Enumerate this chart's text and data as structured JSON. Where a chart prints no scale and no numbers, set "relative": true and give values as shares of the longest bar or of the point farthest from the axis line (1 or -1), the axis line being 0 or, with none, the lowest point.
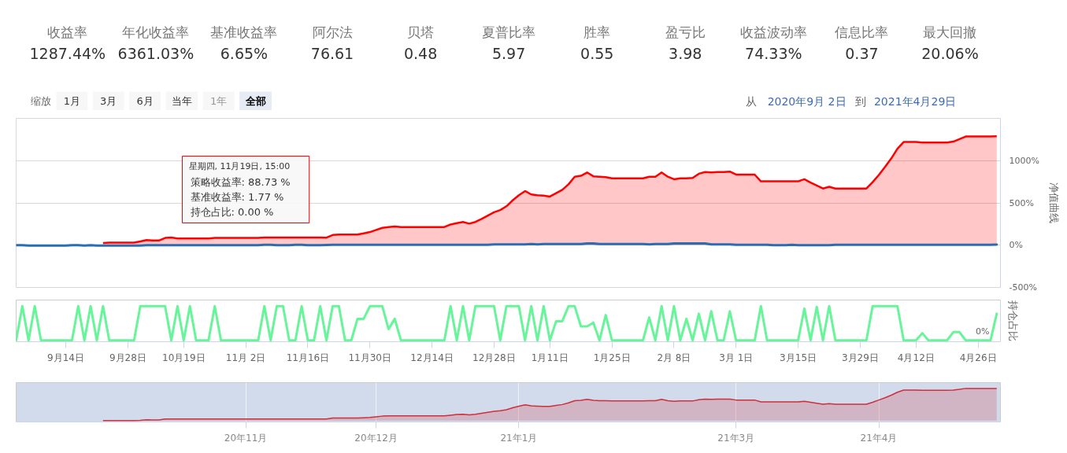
{
  "chart_data": [
    {
      "type": "other",
      "categories": [
        "收益率",
        "年化收益率",
        "基准收益率",
        "阿尔法",
        "贝塔",
        "夏普比率",
        "胜率",
        "盈亏比",
        "收益波动率",
        "信息比率",
        "最大回撤"
      ],
      "value_labels": [
        "1287.44%",
        "6361.03%",
        "6.65%",
        "76.61",
        "0.48",
        "5.97",
        "0.55",
        "3.98",
        "74.33%",
        "0.37",
        "20.06%"
      ],
      "annotations": [
        "缩放",
        "1月",
        "3月",
        "6月",
        "当年",
        "1年",
        "全部",
        "从",
        "2020年9月 2日",
        "到",
        "2021年4月29日"
      ]
    },
    {
      "type": "area",
      "ylabel": "净值曲线",
      "ylim": [
        -500,
        1500
      ],
      "yticks": [
        {
          "value": -500,
          "label": "-500%"
        },
        {
          "value": 0,
          "label": "0%"
        },
        {
          "value": 500,
          "label": "500%"
        },
        {
          "value": 1000,
          "label": "1000%"
        }
      ],
      "grid": "y",
      "tick_labels": "y",
      "categories": [
        null,
        null,
        null,
        null,
        null,
        null,
        null,
        null,
        null,
        null,
        null,
        null,
        null,
        null,
        null,
        null,
        null,
        null,
        null,
        null,
        null,
        null,
        null,
        null,
        null,
        null,
        null,
        null,
        null,
        null,
        null,
        null,
        null,
        null,
        null,
        null,
        null,
        null,
        null,
        null,
        null,
        null,
        null,
        null,
        null,
        null,
        null,
        null,
        null,
        null,
        null,
        null,
        null,
        null,
        null,
        null,
        null,
        null,
        null,
        null,
        null,
        null,
        null,
        null,
        null,
        null,
        null,
        null,
        null,
        null,
        null,
        null,
        null,
        null,
        null,
        null,
        null,
        null,
        null,
        null,
        null,
        null,
        null,
        null,
        null,
        null,
        null,
        null,
        null,
        null,
        null,
        null,
        null,
        null,
        null,
        null,
        null,
        null,
        null,
        null,
        null,
        null,
        null,
        null,
        null,
        null,
        null,
        null,
        null,
        null,
        null,
        null,
        null,
        null,
        null,
        null,
        null,
        null,
        null,
        null,
        null,
        null,
        null,
        null,
        null,
        null,
        null,
        null,
        null,
        null,
        null,
        null,
        null,
        null,
        null,
        null,
        null,
        null,
        null,
        null,
        null,
        null,
        null,
        null,
        null,
        null,
        null,
        null,
        null,
        null,
        null,
        null,
        null,
        null,
        null,
        null,
        null,
        null,
        null
      ],
      "series": [
        {
          "color": "#ff0000",
          "values": [
            null,
            null,
            null,
            null,
            null,
            null,
            null,
            null,
            null,
            null,
            null,
            null,
            null,
            null,
            25,
            30,
            30,
            30,
            30,
            30,
            45,
            60,
            55,
            55,
            85,
            90,
            80,
            80,
            80,
            80,
            80,
            80,
            85,
            85,
            85,
            85,
            85,
            85,
            85,
            85,
            90,
            90,
            90,
            90,
            90,
            90,
            90,
            90,
            90,
            90,
            88.73,
            120,
            125,
            125,
            125,
            125,
            140,
            155,
            180,
            205,
            215,
            220,
            215,
            215,
            215,
            215,
            215,
            215,
            215,
            215,
            245,
            260,
            275,
            255,
            275,
            310,
            350,
            390,
            415,
            460,
            530,
            590,
            640,
            600,
            590,
            585,
            575,
            615,
            655,
            720,
            810,
            820,
            860,
            815,
            810,
            805,
            790,
            790,
            790,
            790,
            790,
            790,
            810,
            810,
            860,
            810,
            780,
            790,
            790,
            795,
            845,
            865,
            860,
            865,
            865,
            870,
            835,
            835,
            835,
            835,
            755,
            755,
            755,
            755,
            755,
            755,
            755,
            780,
            740,
            705,
            670,
            690,
            670,
            670,
            670,
            670,
            670,
            670,
            745,
            830,
            925,
            1025,
            1140,
            1220,
            1220,
            1220,
            1215,
            1215,
            1215,
            1215,
            1215,
            1225,
            1255,
            1285,
            1285,
            1285,
            1285,
            1285,
            1287.44
          ]
        },
        {
          "type": "line",
          "color": "#2a6db5",
          "values": [
            0,
            0,
            -5,
            -5,
            -5,
            -5,
            -5,
            -5,
            -5,
            0,
            0,
            -5,
            0,
            -5,
            -5,
            -5,
            -5,
            -5,
            -5,
            -5,
            -5,
            0,
            0,
            0,
            0,
            0,
            0,
            0,
            0,
            0,
            0,
            0,
            0,
            0,
            0,
            0,
            0,
            0,
            0,
            0,
            5,
            5,
            0,
            0,
            0,
            5,
            5,
            0,
            0,
            0,
            1.77,
            5,
            5,
            5,
            5,
            5,
            5,
            5,
            5,
            5,
            5,
            5,
            5,
            5,
            5,
            5,
            5,
            5,
            5,
            5,
            5,
            5,
            5,
            5,
            5,
            5,
            5,
            10,
            10,
            10,
            10,
            10,
            10,
            15,
            10,
            15,
            15,
            15,
            15,
            15,
            15,
            15,
            20,
            20,
            15,
            15,
            15,
            15,
            15,
            15,
            15,
            15,
            10,
            15,
            15,
            15,
            20,
            20,
            20,
            20,
            20,
            20,
            10,
            10,
            10,
            10,
            5,
            5,
            5,
            5,
            5,
            5,
            0,
            0,
            0,
            5,
            0,
            0,
            0,
            0,
            0,
            0,
            5,
            5,
            5,
            5,
            5,
            5,
            5,
            5,
            5,
            5,
            5,
            5,
            5,
            5,
            5,
            5,
            5,
            5,
            5,
            5,
            5,
            5,
            5,
            5,
            5,
            5,
            6.65
          ]
        }
      ],
      "annotations": [
        "星期四, 11月19日, 15:00",
        "策略收益率: 88.73 %",
        "基准收益率: 1.77 %",
        "持仓占比: 0.00 %"
      ]
    },
    {
      "type": "line",
      "relative": true,
      "ylabel": "持仓占比",
      "tick_labels": "x",
      "categories": [
        null,
        null,
        null,
        null,
        null,
        null,
        null,
        null,
        "9月14日",
        null,
        null,
        null,
        null,
        null,
        null,
        null,
        null,
        null,
        "9月28日",
        null,
        null,
        null,
        null,
        null,
        null,
        null,
        null,
        "10月19日",
        null,
        null,
        null,
        null,
        null,
        null,
        null,
        null,
        null,
        "11月 2日",
        null,
        null,
        null,
        null,
        null,
        null,
        null,
        null,
        null,
        "11月16日",
        null,
        null,
        null,
        null,
        null,
        null,
        null,
        null,
        null,
        "11月30日",
        null,
        null,
        null,
        null,
        null,
        null,
        null,
        null,
        null,
        "12月14日",
        null,
        null,
        null,
        null,
        null,
        null,
        null,
        null,
        null,
        "12月28日",
        null,
        null,
        null,
        null,
        null,
        null,
        null,
        null,
        "1月11日",
        null,
        null,
        null,
        null,
        null,
        null,
        null,
        null,
        null,
        "1月25日",
        null,
        null,
        null,
        null,
        null,
        null,
        null,
        null,
        null,
        "2月 8日",
        null,
        null,
        null,
        null,
        null,
        null,
        null,
        null,
        null,
        "3月 1日",
        null,
        null,
        null,
        null,
        null,
        null,
        null,
        null,
        null,
        "3月15日",
        null,
        null,
        null,
        null,
        null,
        null,
        null,
        null,
        null,
        "3月29日",
        null,
        null,
        null,
        null,
        null,
        null,
        null,
        null,
        "4月12日",
        null,
        null,
        null,
        null,
        null,
        null,
        null,
        null,
        null,
        "4月26日",
        null,
        null,
        null
      ],
      "series": [
        {
          "color": "#66f598",
          "values": [
            0,
            1,
            0,
            1,
            0,
            0,
            0,
            0,
            0,
            0,
            1,
            0,
            1,
            0,
            1,
            0,
            0,
            0,
            0,
            0,
            1,
            1,
            1,
            1,
            1,
            0,
            1,
            0,
            1,
            0,
            0,
            0,
            1,
            0,
            0,
            0,
            0,
            0,
            0,
            0,
            1,
            0,
            1,
            1,
            0,
            0,
            1,
            0,
            0,
            1,
            0,
            1,
            1,
            0,
            0,
            0.63,
            0.63,
            1,
            1,
            1,
            0.33,
            0.63,
            0,
            0,
            0,
            0,
            0,
            0,
            0,
            0,
            1,
            0,
            1,
            0,
            1,
            1,
            1,
            1,
            0,
            1,
            1,
            1,
            0,
            1,
            0,
            1,
            0,
            0.56,
            0.56,
            1,
            1,
            0.41,
            0.41,
            0.52,
            0,
            0.74,
            0,
            0,
            0,
            0,
            0,
            0,
            0.67,
            0,
            1,
            0,
            1,
            0,
            0.63,
            0,
            0.78,
            0,
            0.85,
            0,
            0,
            0.85,
            0,
            0,
            0,
            0,
            1,
            0,
            0,
            0,
            0,
            0,
            0,
            0.93,
            0,
            0.98,
            0,
            1,
            0,
            0,
            0,
            0,
            0,
            0,
            1,
            1,
            1,
            1,
            1,
            0,
            0,
            0,
            0.21,
            0,
            0,
            0,
            0,
            0.24,
            0.24,
            0,
            0,
            0,
            0,
            0,
            0.78
          ]
        }
      ],
      "annotations": [
        "0%"
      ]
    },
    {
      "type": "area",
      "relative": true,
      "tick_labels": "x",
      "grid": "x",
      "categories": [
        null,
        null,
        null,
        null,
        null,
        null,
        null,
        null,
        null,
        null,
        null,
        null,
        null,
        null,
        null,
        null,
        null,
        null,
        null,
        null,
        null,
        null,
        null,
        null,
        null,
        null,
        null,
        null,
        null,
        null,
        null,
        null,
        null,
        null,
        null,
        null,
        null,
        "20年11月",
        null,
        null,
        null,
        null,
        null,
        null,
        null,
        null,
        null,
        null,
        null,
        null,
        null,
        null,
        null,
        null,
        null,
        null,
        null,
        null,
        "20年12月",
        null,
        null,
        null,
        null,
        null,
        null,
        null,
        null,
        null,
        null,
        null,
        null,
        null,
        null,
        null,
        null,
        null,
        null,
        null,
        null,
        null,
        null,
        "21年1月",
        null,
        null,
        null,
        null,
        null,
        null,
        null,
        null,
        null,
        null,
        null,
        null,
        null,
        null,
        null,
        null,
        null,
        null,
        null,
        null,
        null,
        null,
        null,
        null,
        null,
        null,
        null,
        null,
        null,
        null,
        null,
        null,
        null,
        null,
        "21年3月",
        null,
        null,
        null,
        null,
        null,
        null,
        null,
        null,
        null,
        null,
        null,
        null,
        null,
        null,
        null,
        null,
        null,
        null,
        null,
        null,
        null,
        null,
        "21年4月",
        null,
        null,
        null,
        null,
        null,
        null,
        null,
        null,
        null,
        null,
        null,
        null,
        null,
        null,
        null,
        null,
        null,
        null,
        null
      ],
      "series": [
        {
          "color": "#cf2e3a",
          "values": [
            null,
            null,
            null,
            null,
            null,
            null,
            null,
            null,
            null,
            null,
            null,
            null,
            null,
            null,
            0,
            0,
            0,
            0,
            0,
            0,
            0.01,
            0.03,
            0.02,
            0.02,
            0.05,
            0.05,
            0.05,
            0.05,
            0.05,
            0.05,
            0.05,
            0.05,
            0.05,
            0.05,
            0.05,
            0.05,
            0.05,
            0.05,
            0.05,
            0.05,
            0.05,
            0.05,
            0.05,
            0.05,
            0.05,
            0.05,
            0.05,
            0.05,
            0.05,
            0.05,
            0.05,
            0.08,
            0.08,
            0.08,
            0.08,
            0.08,
            0.09,
            0.1,
            0.12,
            0.14,
            0.15,
            0.15,
            0.15,
            0.15,
            0.15,
            0.15,
            0.15,
            0.15,
            0.15,
            0.15,
            0.17,
            0.19,
            0.2,
            0.18,
            0.2,
            0.23,
            0.26,
            0.29,
            0.31,
            0.34,
            0.4,
            0.45,
            0.49,
            0.46,
            0.45,
            0.44,
            0.44,
            0.47,
            0.5,
            0.55,
            0.62,
            0.63,
            0.66,
            0.63,
            0.62,
            0.62,
            0.61,
            0.61,
            0.61,
            0.61,
            0.61,
            0.61,
            0.62,
            0.62,
            0.66,
            0.62,
            0.6,
            0.61,
            0.61,
            0.61,
            0.65,
            0.67,
            0.66,
            0.67,
            0.67,
            0.67,
            0.64,
            0.64,
            0.64,
            0.64,
            0.58,
            0.58,
            0.58,
            0.58,
            0.58,
            0.58,
            0.58,
            0.6,
            0.57,
            0.54,
            0.51,
            0.53,
            0.51,
            0.51,
            0.51,
            0.51,
            0.51,
            0.51,
            0.57,
            0.64,
            0.71,
            0.79,
            0.88,
            0.95,
            0.95,
            0.95,
            0.94,
            0.94,
            0.94,
            0.94,
            0.94,
            0.95,
            0.97,
            1,
            1,
            1,
            1,
            1,
            1
          ]
        }
      ]
    }
  ]
}
